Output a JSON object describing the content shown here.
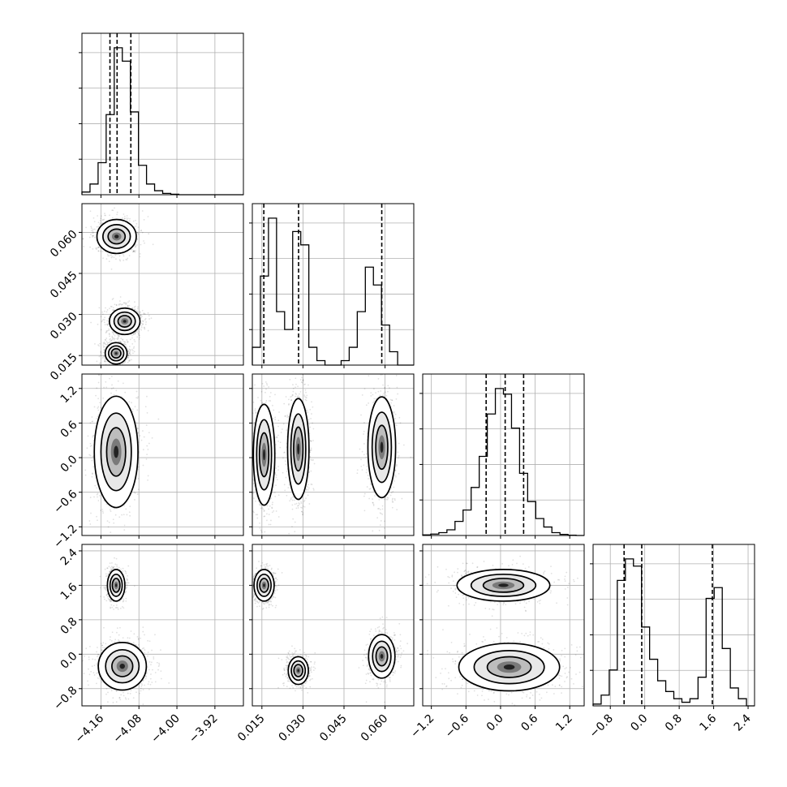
{
  "chart_data": {
    "type": "corner",
    "grid": true,
    "parameters": [
      {
        "range": [
          -4.2,
          -3.86
        ],
        "ticks": [
          "−4.16",
          "−4.08",
          "−4.00",
          "−3.92"
        ],
        "tick_values": [
          -4.16,
          -4.08,
          -4.0,
          -3.92
        ]
      },
      {
        "range": [
          0.0115,
          0.0705
        ],
        "ticks": [
          "0.015",
          "0.030",
          "0.045",
          "0.060"
        ],
        "tick_values": [
          0.015,
          0.03,
          0.045,
          0.06
        ]
      },
      {
        "range": [
          -1.35,
          1.45
        ],
        "ticks": [
          "−1.2",
          "−0.6",
          "0.0",
          "0.6",
          "1.2"
        ],
        "tick_values": [
          -1.2,
          -0.6,
          0.0,
          0.6,
          1.2
        ]
      },
      {
        "range": [
          -1.2,
          2.55
        ],
        "ticks": [
          "−0.8",
          "0.0",
          "0.8",
          "1.6",
          "2.4"
        ],
        "tick_values": [
          -0.8,
          0.0,
          0.8,
          1.6,
          2.4
        ]
      }
    ],
    "histograms": [
      {
        "bin_edges": [
          -4.2,
          -4.183,
          -4.166,
          -4.149,
          -4.132,
          -4.115,
          -4.098,
          -4.081,
          -4.064,
          -4.047,
          -4.03,
          -4.013,
          -3.996,
          -3.979,
          -3.962,
          -3.945,
          -3.928,
          -3.911,
          -3.894,
          -3.877,
          -3.86
        ],
        "counts": [
          1,
          4,
          12,
          30,
          55,
          50,
          31,
          11,
          4,
          1.5,
          0.5,
          0.2,
          0,
          0,
          0,
          0,
          0,
          0,
          0,
          0
        ],
        "quantiles": [
          -4.141,
          -4.126,
          -4.097
        ]
      },
      {
        "bin_edges": [
          0.0115,
          0.01445,
          0.0174,
          0.02035,
          0.0233,
          0.02625,
          0.0292,
          0.03215,
          0.0351,
          0.03805,
          0.041,
          0.04395,
          0.0469,
          0.04985,
          0.0528,
          0.05575,
          0.0587,
          0.06165,
          0.0646,
          0.06755,
          0.0705
        ],
        "counts": [
          4,
          20,
          33,
          12,
          8,
          30,
          27,
          4,
          1,
          0,
          0,
          1,
          4,
          12,
          22,
          18,
          9,
          3,
          0,
          0
        ],
        "quantiles": [
          0.0157,
          0.0284,
          0.0588
        ]
      },
      {
        "bin_edges": [
          -1.35,
          -1.21,
          -1.07,
          -0.93,
          -0.79,
          -0.65,
          -0.51,
          -0.37,
          -0.23,
          -0.09,
          0.05,
          0.19,
          0.33,
          0.47,
          0.61,
          0.75,
          0.89,
          1.03,
          1.17,
          1.31,
          1.45
        ],
        "counts": [
          0.2,
          0.5,
          1,
          2,
          5,
          9,
          17,
          28,
          43,
          52,
          50,
          38,
          22,
          12,
          6,
          3,
          1,
          0.4,
          0.1,
          0
        ],
        "quantiles": [
          -0.25,
          0.08,
          0.4
        ]
      },
      {
        "bin_edges": [
          -1.2,
          -1.0125,
          -0.825,
          -0.6375,
          -0.45,
          -0.2625,
          -0.075,
          0.1125,
          0.3,
          0.4875,
          0.675,
          0.8625,
          1.05,
          1.2375,
          1.425,
          1.6125,
          1.8,
          1.9875,
          2.175,
          2.3625,
          2.55
        ],
        "counts": [
          0.5,
          3,
          10,
          35,
          41,
          39,
          22,
          13,
          7,
          4,
          2,
          1,
          2,
          8,
          30,
          33,
          16,
          5,
          2,
          0
        ],
        "quantiles": [
          -0.48,
          -0.07,
          1.57
        ]
      }
    ],
    "density_blobs": [
      {
        "row": 1,
        "col": 0,
        "cx": -4.127,
        "cy": 0.0585,
        "sx": 0.018,
        "sy": 0.0027,
        "weight": 1.0
      },
      {
        "row": 1,
        "col": 0,
        "cx": -4.11,
        "cy": 0.0275,
        "sx": 0.014,
        "sy": 0.0021,
        "weight": 1.0
      },
      {
        "row": 1,
        "col": 0,
        "cx": -4.128,
        "cy": 0.0158,
        "sx": 0.01,
        "sy": 0.0017,
        "weight": 1.0
      },
      {
        "row": 2,
        "col": 0,
        "cx": -4.128,
        "cy": 0.1,
        "sx": 0.02,
        "sy": 0.42,
        "weight": 1.0
      },
      {
        "row": 2,
        "col": 1,
        "cx": 0.0158,
        "cy": 0.05,
        "sx": 0.0017,
        "sy": 0.38,
        "weight": 1.0
      },
      {
        "row": 2,
        "col": 1,
        "cx": 0.0283,
        "cy": 0.15,
        "sx": 0.0017,
        "sy": 0.38,
        "weight": 1.0
      },
      {
        "row": 2,
        "col": 1,
        "cx": 0.0588,
        "cy": 0.18,
        "sx": 0.0022,
        "sy": 0.38,
        "weight": 0.9
      },
      {
        "row": 3,
        "col": 0,
        "cx": -4.128,
        "cy": 1.6,
        "sx": 0.008,
        "sy": 0.16,
        "weight": 0.8
      },
      {
        "row": 3,
        "col": 0,
        "cx": -4.115,
        "cy": -0.28,
        "sx": 0.022,
        "sy": 0.24,
        "weight": 1.0
      },
      {
        "row": 3,
        "col": 1,
        "cx": 0.0158,
        "cy": 1.6,
        "sx": 0.0016,
        "sy": 0.16,
        "weight": 0.8
      },
      {
        "row": 3,
        "col": 1,
        "cx": 0.0283,
        "cy": -0.38,
        "sx": 0.0016,
        "sy": 0.14,
        "weight": 0.9
      },
      {
        "row": 3,
        "col": 1,
        "cx": 0.0588,
        "cy": -0.05,
        "sx": 0.0021,
        "sy": 0.22,
        "weight": 0.8
      },
      {
        "row": 3,
        "col": 2,
        "cx": 0.05,
        "cy": 1.6,
        "sx": 0.35,
        "sy": 0.16,
        "weight": 0.8
      },
      {
        "row": 3,
        "col": 2,
        "cx": 0.15,
        "cy": -0.3,
        "sx": 0.38,
        "sy": 0.24,
        "weight": 1.0
      }
    ]
  }
}
